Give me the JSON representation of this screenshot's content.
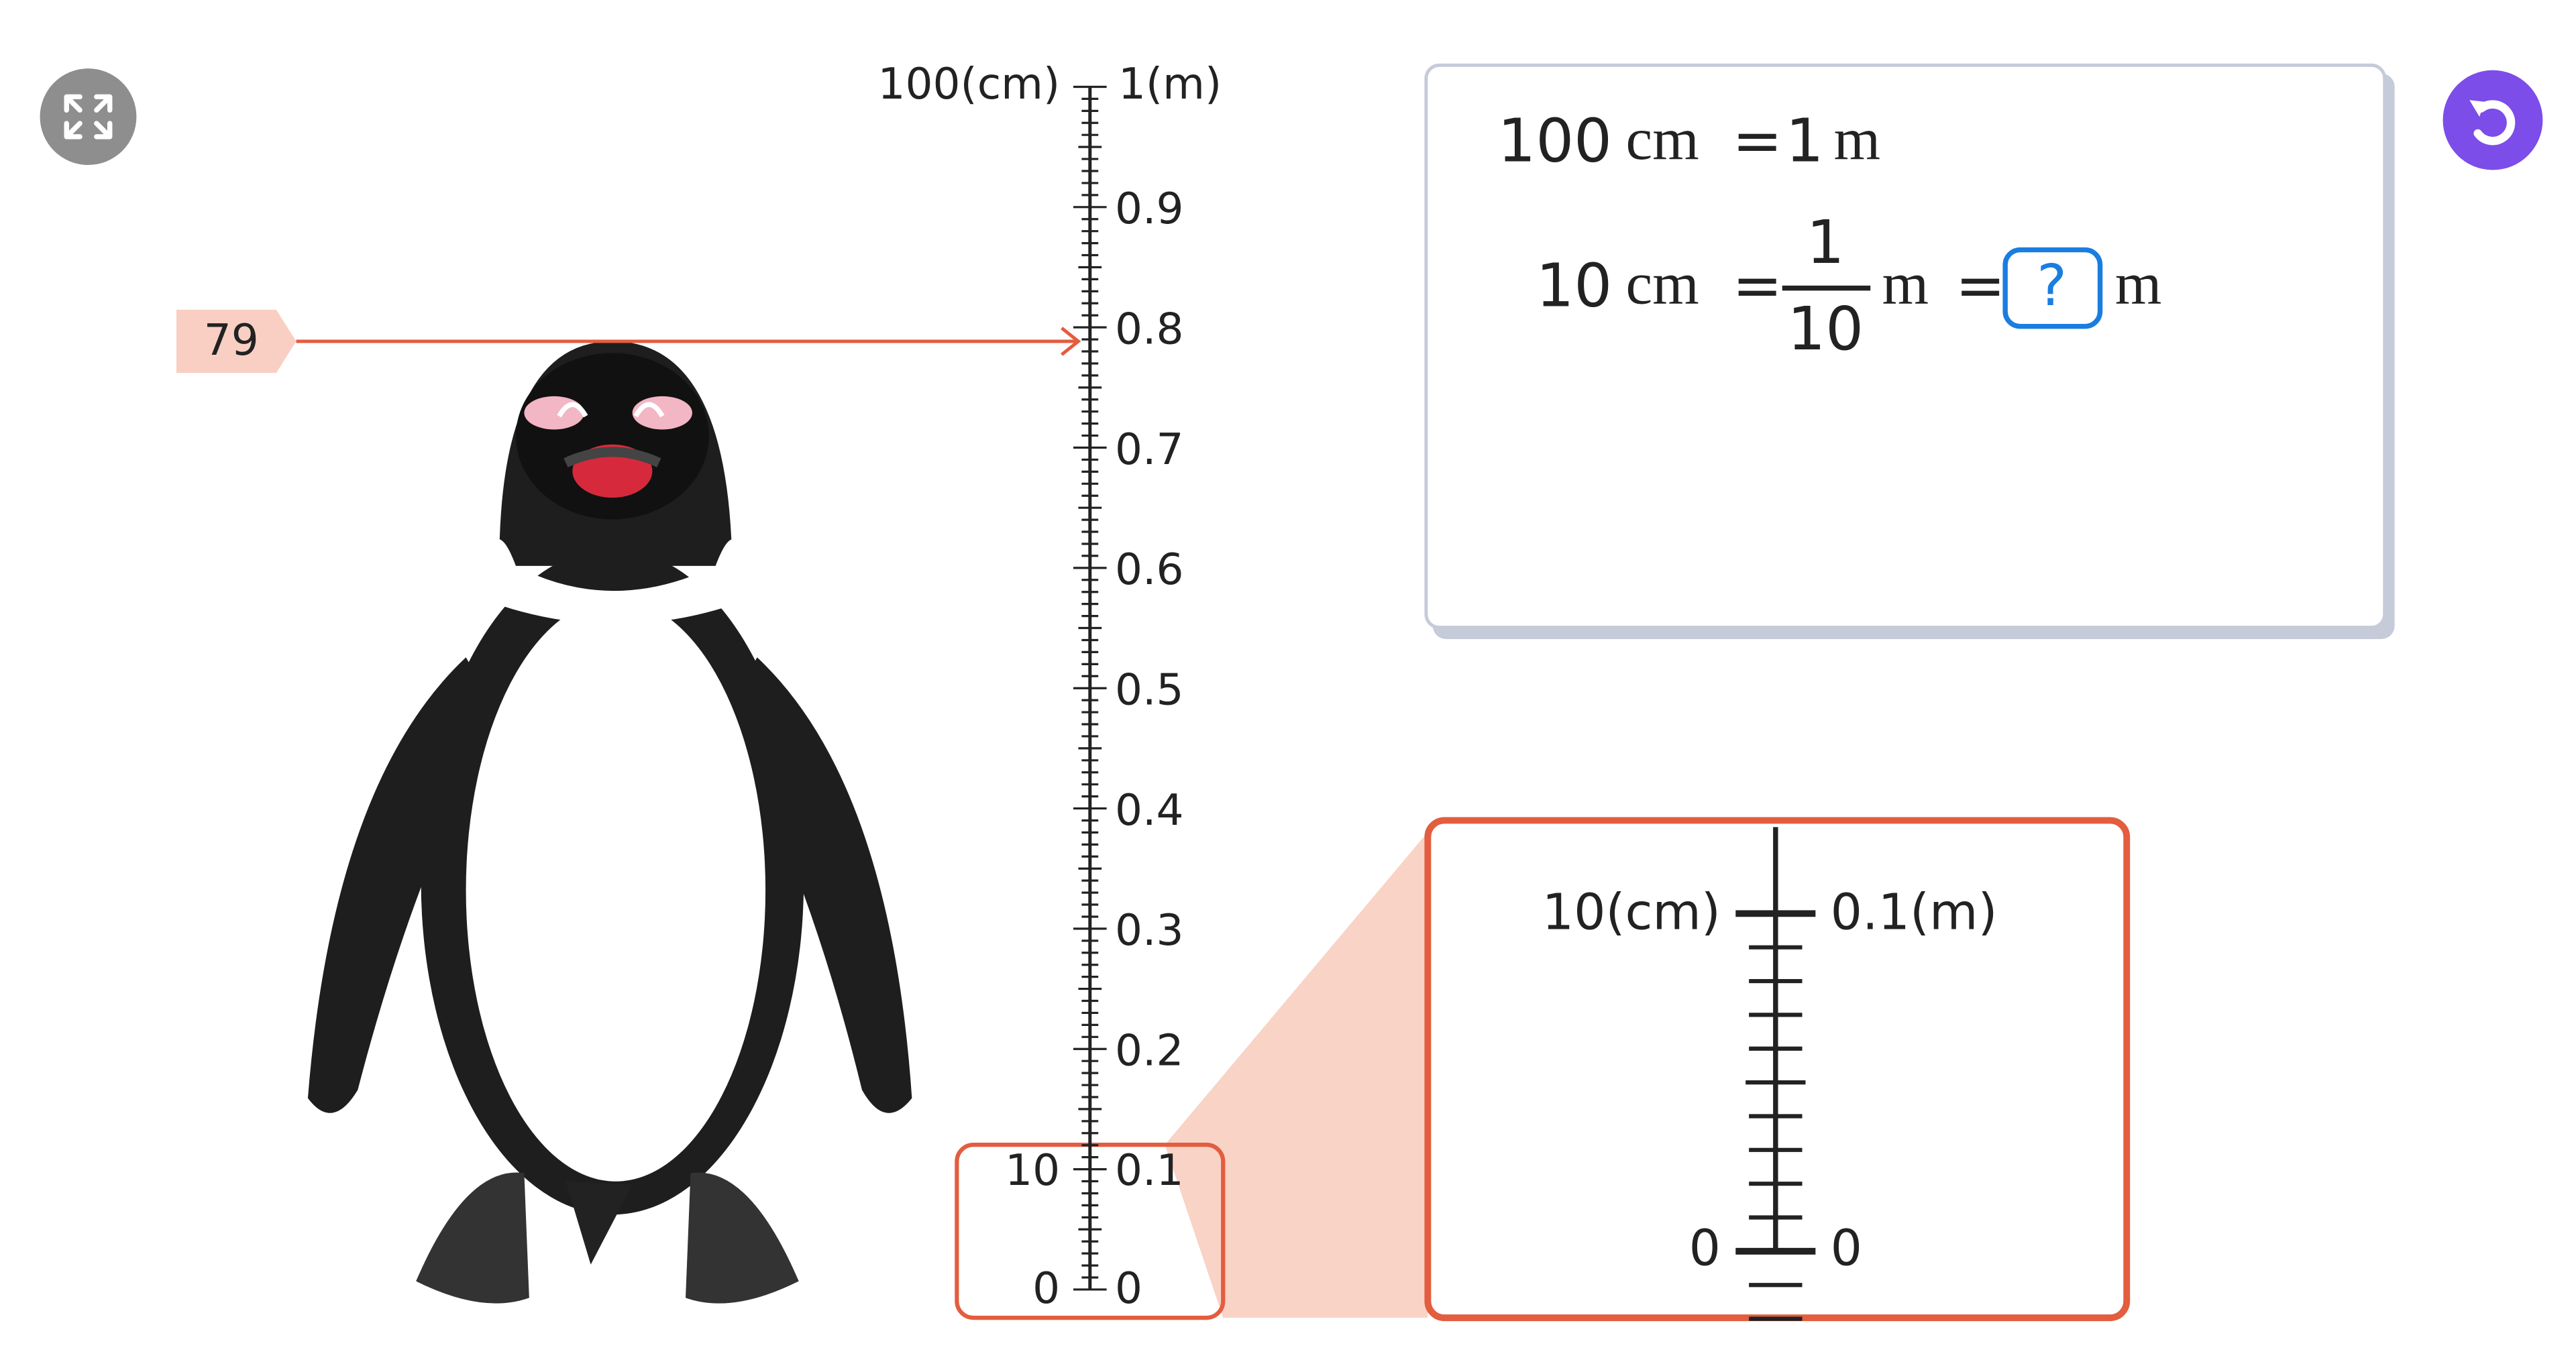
{
  "ruler": {
    "cm_top": "100(cm)",
    "m_top": "1(m)",
    "m_labels": [
      "0.9",
      "0.8",
      "0.7",
      "0.6",
      "0.5",
      "0.4",
      "0.3",
      "0.2"
    ],
    "cm_ten": "10",
    "m_ten": "0.1",
    "cm_zero": "0",
    "m_zero": "0"
  },
  "marker": "79",
  "formula": {
    "line1": {
      "left": "100",
      "left_unit": "cm",
      "eq": "=",
      "right": "1",
      "right_unit": "m"
    },
    "line2": {
      "left": "10",
      "left_unit": "cm",
      "eq1": "=",
      "numerator": "1",
      "denominator": "10",
      "mid_unit": "m",
      "eq2": "=",
      "answer": "?",
      "right_unit": "m"
    }
  },
  "zoom": {
    "cm_label": "10(cm)",
    "m_label": "0.1(m)",
    "cm_zero": "0",
    "m_zero": "0"
  }
}
